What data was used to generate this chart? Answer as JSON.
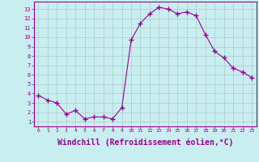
{
  "x": [
    0,
    1,
    2,
    3,
    4,
    5,
    6,
    7,
    8,
    9,
    10,
    11,
    12,
    13,
    14,
    15,
    16,
    17,
    18,
    19,
    20,
    21,
    22,
    23
  ],
  "y": [
    3.8,
    3.3,
    3.0,
    1.8,
    2.2,
    1.3,
    1.5,
    1.5,
    1.3,
    2.5,
    9.7,
    11.5,
    12.5,
    13.2,
    13.0,
    12.5,
    12.7,
    12.3,
    10.3,
    8.5,
    7.8,
    6.7,
    6.3,
    5.7
  ],
  "line_color": "#990099",
  "marker": "+",
  "marker_size": 4,
  "xlabel": "Windchill (Refroidissement éolien,°C)",
  "xlabel_fontsize": 7,
  "background_color": "#c8eef0",
  "grid_color": "#b0c8cc",
  "tick_color": "#990099",
  "label_color": "#990099",
  "xlim": [
    -0.5,
    23.5
  ],
  "ylim": [
    0.5,
    13.8
  ],
  "yticks": [
    1,
    2,
    3,
    4,
    5,
    6,
    7,
    8,
    9,
    10,
    11,
    12,
    13
  ],
  "xticks": [
    0,
    1,
    2,
    3,
    4,
    5,
    6,
    7,
    8,
    9,
    10,
    11,
    12,
    13,
    14,
    15,
    16,
    17,
    18,
    19,
    20,
    21,
    22,
    23
  ]
}
